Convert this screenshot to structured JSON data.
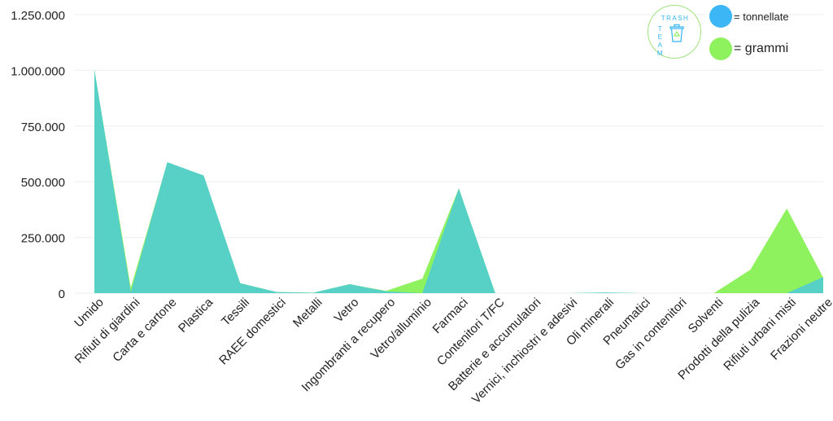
{
  "chart_data": {
    "type": "area",
    "categories": [
      "Umido",
      "Rifiuti di giardini",
      "Carta e cartone",
      "Plastica",
      "Tessili",
      "RAEE domestici",
      "Metalli",
      "Vetro",
      "Ingombranti a recupero",
      "Vetro/alluminio",
      "Farmaci",
      "Contenitori T/FC",
      "Batterie e accumulatori",
      "Vernici, inchiostri e adesivi",
      "Oli minerali",
      "Pneumatici",
      "Gas in contenitori",
      "Solventi",
      "Prodotti della pulizia",
      "Rifiuti urbani misti",
      "Frazioni neutre"
    ],
    "series": [
      {
        "name": "= grammi",
        "color": "#8ef25f",
        "values": [
          1000000,
          25000,
          585000,
          525000,
          45000,
          5000,
          2000,
          40000,
          10000,
          65000,
          470000,
          0,
          0,
          0,
          2000,
          0,
          0,
          0,
          105000,
          380000,
          70000
        ]
      },
      {
        "name": "= tonnellate",
        "color": "#57d0c6",
        "values": [
          1005000,
          5000,
          588000,
          528000,
          45000,
          5000,
          2000,
          40000,
          8000,
          0,
          470000,
          0,
          0,
          0,
          3000,
          0,
          0,
          0,
          0,
          0,
          72000
        ]
      }
    ],
    "y_ticks": [
      "0",
      "250.000",
      "500.000",
      "750.000",
      "1.000.000",
      "1.250.000"
    ],
    "ylim": [
      0,
      1250000
    ],
    "grid": true,
    "legend_position": "top-right"
  },
  "legend": {
    "items": [
      {
        "label": "= tonnellate",
        "color": "#3cb6f5"
      },
      {
        "label": "= grammi",
        "color": "#8ef25f"
      }
    ]
  },
  "logo": {
    "line1": "TRASH",
    "line2": "TEAM",
    "icon": "recycle-bin-icon"
  }
}
